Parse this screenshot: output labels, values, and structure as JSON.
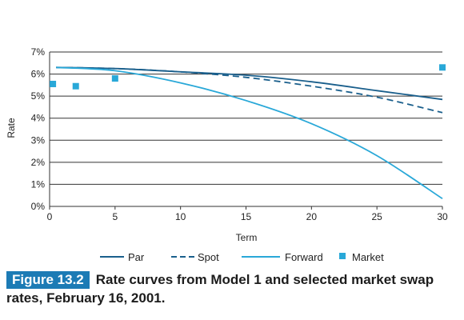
{
  "chart_data": {
    "type": "line",
    "xlabel": "Term",
    "ylabel": "Rate",
    "xlim": [
      0,
      30
    ],
    "ylim": [
      0,
      7
    ],
    "x_ticks": [
      "0",
      "5",
      "10",
      "15",
      "20",
      "25",
      "30"
    ],
    "y_ticks": [
      "0%",
      "1%",
      "2%",
      "3%",
      "4%",
      "5%",
      "6%",
      "7%"
    ],
    "grid": "horizontal",
    "legend_position": "bottom",
    "series": [
      {
        "name": "Par",
        "style": "solid",
        "color": "#1a5f8c",
        "x": [
          0.5,
          5,
          10,
          15,
          20,
          25,
          30
        ],
        "y": [
          6.3,
          6.25,
          6.1,
          5.95,
          5.65,
          5.25,
          4.85
        ]
      },
      {
        "name": "Spot",
        "style": "dashed",
        "color": "#1a5f8c",
        "x": [
          0.5,
          5,
          10,
          15,
          20,
          25,
          30
        ],
        "y": [
          6.3,
          6.25,
          6.1,
          5.85,
          5.45,
          4.95,
          4.25
        ]
      },
      {
        "name": "Forward",
        "style": "solid",
        "color": "#29a8d8",
        "x": [
          0.5,
          5,
          10,
          15,
          20,
          25,
          30
        ],
        "y": [
          6.3,
          6.15,
          5.6,
          4.8,
          3.75,
          2.3,
          0.35
        ]
      },
      {
        "name": "Market",
        "style": "marker",
        "color": "#29a8d8",
        "x": [
          0.25,
          2,
          5,
          30
        ],
        "y": [
          5.55,
          5.45,
          5.8,
          6.3
        ]
      }
    ]
  },
  "caption": {
    "figure_label": "Figure 13.2",
    "text": "Rate curves from Model 1 and selected market swap rates, February 16, 2001."
  }
}
